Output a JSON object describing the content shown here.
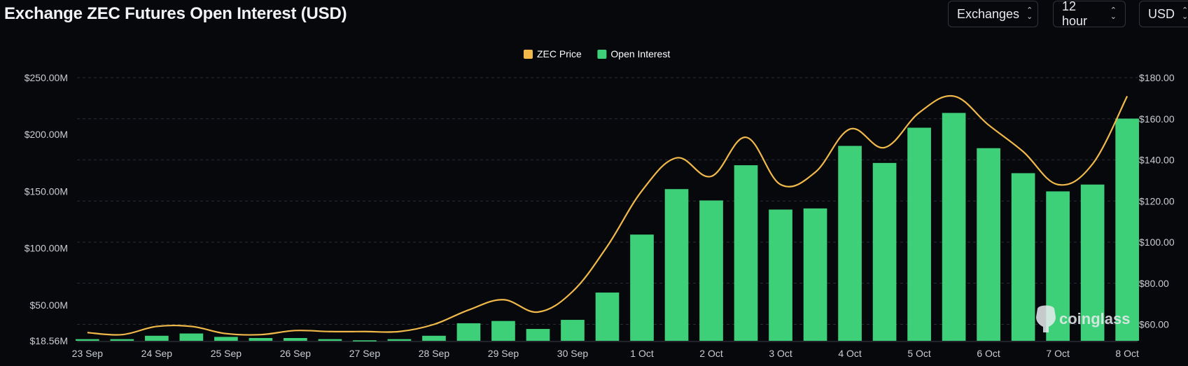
{
  "header": {
    "title": "Exchange ZEC Futures Open Interest (USD)",
    "controls": {
      "exchanges": "Exchanges",
      "interval": "12 hour",
      "currency": "USD"
    }
  },
  "watermark": "coinglass",
  "colors": {
    "background": "#07080c",
    "open_interest": "#3ecf79",
    "zec_price": "#f0b94a",
    "grid": "#2a2d35"
  },
  "chart_data": {
    "type": "bar",
    "legend": [
      "ZEC Price",
      "Open Interest"
    ],
    "legend_position": "top-center",
    "grid": true,
    "x_tick_labels": [
      "23 Sep",
      "24 Sep",
      "25 Sep",
      "26 Sep",
      "27 Sep",
      "28 Sep",
      "29 Sep",
      "30 Sep",
      "1 Oct",
      "2 Oct",
      "3 Oct",
      "4 Oct",
      "5 Oct",
      "6 Oct",
      "7 Oct",
      "8 Oct"
    ],
    "y_left": {
      "ticks": [
        "$18.56M",
        "$50.00M",
        "$100.00M",
        "$150.00M",
        "$200.00M",
        "$250.00M"
      ],
      "tick_values": [
        18.56,
        50,
        100,
        150,
        200,
        250
      ],
      "range": [
        18.56,
        250
      ]
    },
    "y_right": {
      "ticks": [
        "$60.00",
        "$80.00",
        "$100.00",
        "$120.00",
        "$140.00",
        "$160.00",
        "$180.00"
      ],
      "tick_values": [
        60,
        80,
        100,
        120,
        140,
        160,
        180
      ],
      "range": [
        52,
        180
      ]
    },
    "series": [
      {
        "name": "Open Interest",
        "type": "bar",
        "axis": "left",
        "values": [
          20,
          20,
          23,
          25,
          22,
          21,
          21,
          20,
          19,
          20,
          23,
          34,
          36,
          29,
          37,
          61,
          112,
          152,
          142,
          173,
          134,
          135,
          190,
          175,
          206,
          219,
          188,
          166,
          150,
          156,
          214
        ]
      },
      {
        "name": "ZEC Price",
        "type": "line",
        "axis": "right",
        "values": [
          56,
          55,
          59,
          59,
          55.5,
          55,
          57,
          56.5,
          56.5,
          56.5,
          60,
          67,
          72,
          66,
          76,
          98,
          125,
          141,
          132,
          151,
          128,
          134,
          155,
          146,
          163,
          171,
          157,
          144,
          128,
          138,
          171
        ]
      }
    ]
  }
}
